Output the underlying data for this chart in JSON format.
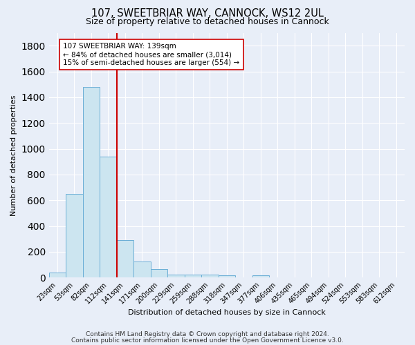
{
  "title_line1": "107, SWEETBRIAR WAY, CANNOCK, WS12 2UL",
  "title_line2": "Size of property relative to detached houses in Cannock",
  "xlabel": "Distribution of detached houses by size in Cannock",
  "ylabel": "Number of detached properties",
  "bar_labels": [
    "23sqm",
    "53sqm",
    "82sqm",
    "112sqm",
    "141sqm",
    "171sqm",
    "200sqm",
    "229sqm",
    "259sqm",
    "288sqm",
    "318sqm",
    "347sqm",
    "377sqm",
    "406sqm",
    "435sqm",
    "465sqm",
    "494sqm",
    "524sqm",
    "553sqm",
    "583sqm",
    "612sqm"
  ],
  "bar_values": [
    40,
    650,
    1480,
    940,
    290,
    125,
    65,
    25,
    20,
    20,
    15,
    0,
    15,
    0,
    0,
    0,
    0,
    0,
    0,
    0,
    0
  ],
  "bar_color": "#cce5f0",
  "bar_edgecolor": "#6aaed6",
  "vline_color": "#cc0000",
  "annotation_text": "107 SWEETBRIAR WAY: 139sqm\n← 84% of detached houses are smaller (3,014)\n15% of semi-detached houses are larger (554) →",
  "annotation_box_edgecolor": "#cc0000",
  "annotation_box_facecolor": "#ffffff",
  "ylim": [
    0,
    1900
  ],
  "yticks": [
    0,
    200,
    400,
    600,
    800,
    1000,
    1200,
    1400,
    1600,
    1800
  ],
  "footnote1": "Contains HM Land Registry data © Crown copyright and database right 2024.",
  "footnote2": "Contains public sector information licensed under the Open Government Licence v3.0.",
  "bg_color": "#e8eef8",
  "plot_bg_color": "#e8eef8",
  "grid_color": "#ffffff",
  "title_fontsize": 10.5,
  "subtitle_fontsize": 9,
  "footnote_fontsize": 6.5,
  "ylabel_fontsize": 8,
  "xlabel_fontsize": 8,
  "tick_fontsize": 7,
  "annot_fontsize": 7.5
}
